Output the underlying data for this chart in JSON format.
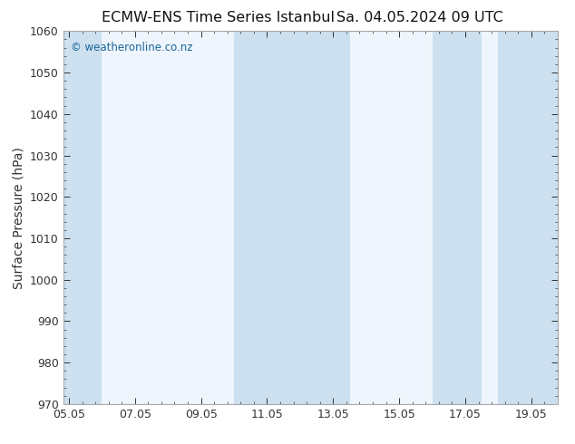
{
  "title_left": "ECMW-ENS Time Series Istanbul",
  "title_right": "Sa. 04.05.2024 09 UTC",
  "ylabel": "Surface Pressure (hPa)",
  "ylim": [
    970,
    1060
  ],
  "yticks": [
    970,
    980,
    990,
    1000,
    1010,
    1020,
    1030,
    1040,
    1050,
    1060
  ],
  "xlim_start": 4.88,
  "xlim_end": 19.85,
  "xtick_labels": [
    "05.05",
    "07.05",
    "09.05",
    "11.05",
    "13.05",
    "15.05",
    "17.05",
    "19.05"
  ],
  "xtick_positions": [
    5.05,
    7.05,
    9.05,
    11.05,
    13.05,
    15.05,
    17.05,
    19.05
  ],
  "background_color": "#ffffff",
  "plot_bg_color": "#eef5fc",
  "shaded_bands": [
    {
      "xmin": 4.88,
      "xmax": 6.05,
      "color": "#cce0f0"
    },
    {
      "xmin": 10.05,
      "xmax": 11.55,
      "color": "#cce0f0"
    },
    {
      "xmin": 11.55,
      "xmax": 13.55,
      "color": "#cce0f0"
    },
    {
      "xmin": 16.05,
      "xmax": 17.55,
      "color": "#cce0f0"
    },
    {
      "xmin": 18.05,
      "xmax": 19.85,
      "color": "#cce0f0"
    }
  ],
  "watermark_text": "© weatheronline.co.nz",
  "watermark_color": "#1a6699",
  "title_fontsize": 11.5,
  "ylabel_fontsize": 10,
  "tick_fontsize": 9,
  "watermark_fontsize": 8.5,
  "spine_color": "#aaaaaa",
  "tick_color": "#333333",
  "minor_tick_count": 3
}
